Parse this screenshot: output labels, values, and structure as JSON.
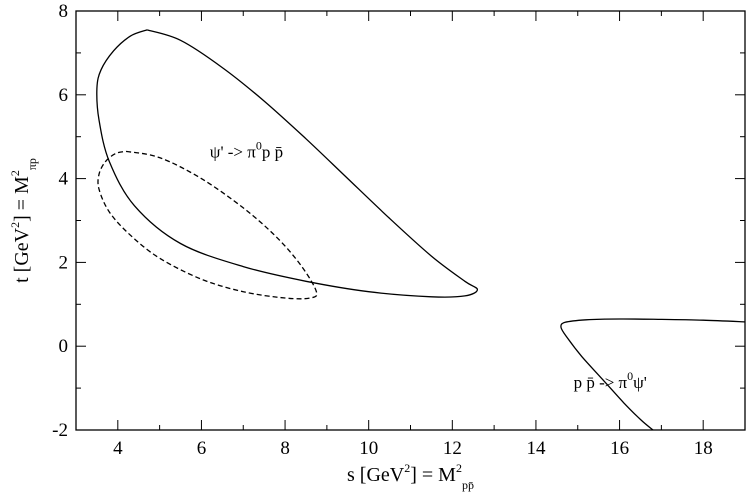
{
  "chart_data": {
    "type": "line",
    "xlim": [
      3,
      19
    ],
    "ylim": [
      -2,
      8
    ],
    "x_ticks": [
      "4",
      "6",
      "8",
      "10",
      "12",
      "14",
      "16",
      "18"
    ],
    "y_ticks": [
      "-2",
      "0",
      "2",
      "4",
      "6",
      "8"
    ],
    "grid": false,
    "xlabel": {
      "prefix": "s [GeV",
      "sup": "2",
      "middle": "] = M",
      "sup2": "2",
      "sub": "pp̄"
    },
    "ylabel": {
      "prefix": "t [GeV",
      "sup": "2",
      "middle": "] = M",
      "sup2": "2",
      "sub": "πp"
    },
    "annotations": [
      {
        "id": "decay",
        "base": "ψ' -> π",
        "sup": "0",
        "rest": "p p̄"
      },
      {
        "id": "annihilation",
        "base": "p p̄ -> π",
        "sup": "0",
        "rest": "ψ'"
      }
    ],
    "series": [
      {
        "style": "solid",
        "x": [
          4.7,
          5.5,
          6.5,
          7.5,
          8.5,
          9.5,
          10.5,
          11.5,
          12.3,
          12.6,
          12.3,
          11.5,
          10.0,
          8.5,
          7.0,
          5.5,
          4.4,
          3.8,
          3.55,
          3.5,
          3.6,
          3.9,
          4.3,
          4.7
        ],
        "y": [
          7.55,
          7.3,
          6.65,
          5.85,
          4.95,
          4.0,
          3.05,
          2.15,
          1.55,
          1.35,
          1.2,
          1.18,
          1.3,
          1.55,
          1.9,
          2.45,
          3.35,
          4.4,
          5.4,
          6.15,
          6.6,
          7.05,
          7.4,
          7.55
        ]
      },
      {
        "style": "dashed",
        "x": [
          4.2,
          5.0,
          6.0,
          7.0,
          7.8,
          8.4,
          8.75,
          8.6,
          8.0,
          7.0,
          6.0,
          5.0,
          4.3,
          3.8,
          3.55,
          3.55,
          3.7,
          3.95,
          4.2
        ],
        "y": [
          4.65,
          4.5,
          4.0,
          3.3,
          2.6,
          1.9,
          1.3,
          1.15,
          1.15,
          1.3,
          1.6,
          2.1,
          2.65,
          3.2,
          3.75,
          4.1,
          4.4,
          4.6,
          4.65
        ]
      },
      {
        "style": "solid",
        "x": [
          19.0,
          18.0,
          17.0,
          16.0,
          15.2,
          14.7,
          14.6,
          14.75,
          15.1,
          15.6,
          16.1,
          16.5,
          16.8
        ],
        "y": [
          0.58,
          0.62,
          0.64,
          0.65,
          0.63,
          0.57,
          0.45,
          0.2,
          -0.25,
          -0.8,
          -1.35,
          -1.75,
          -2.0
        ]
      }
    ]
  }
}
